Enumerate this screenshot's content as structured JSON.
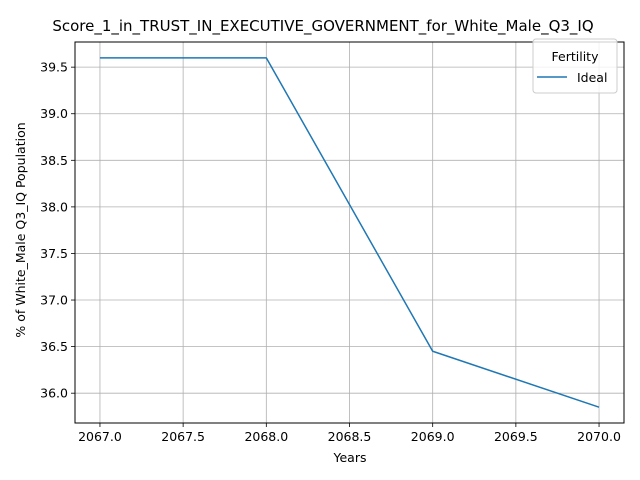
{
  "chart_data": {
    "type": "line",
    "title": "Score_1_in_TRUST_IN_EXECUTIVE_GOVERNMENT_for_White_Male_Q3_IQ",
    "xlabel": "Years",
    "ylabel": "% of White_Male Q3_IQ Population",
    "x": [
      2067.0,
      2068.0,
      2069.0,
      2070.0
    ],
    "series": [
      {
        "name": "Ideal",
        "values": [
          39.6,
          39.6,
          36.45,
          35.85
        ],
        "color": "#1f77b4"
      }
    ],
    "xlim": [
      2066.85,
      2070.15
    ],
    "ylim": [
      35.68,
      39.77
    ],
    "xticks": [
      "2067.0",
      "2067.5",
      "2068.0",
      "2068.5",
      "2069.0",
      "2069.5",
      "2070.0"
    ],
    "yticks": [
      "36.0",
      "36.5",
      "37.0",
      "37.5",
      "38.0",
      "38.5",
      "39.0",
      "39.5"
    ],
    "grid": true,
    "legend": {
      "title": "Fertility",
      "placement": "top-right"
    }
  }
}
